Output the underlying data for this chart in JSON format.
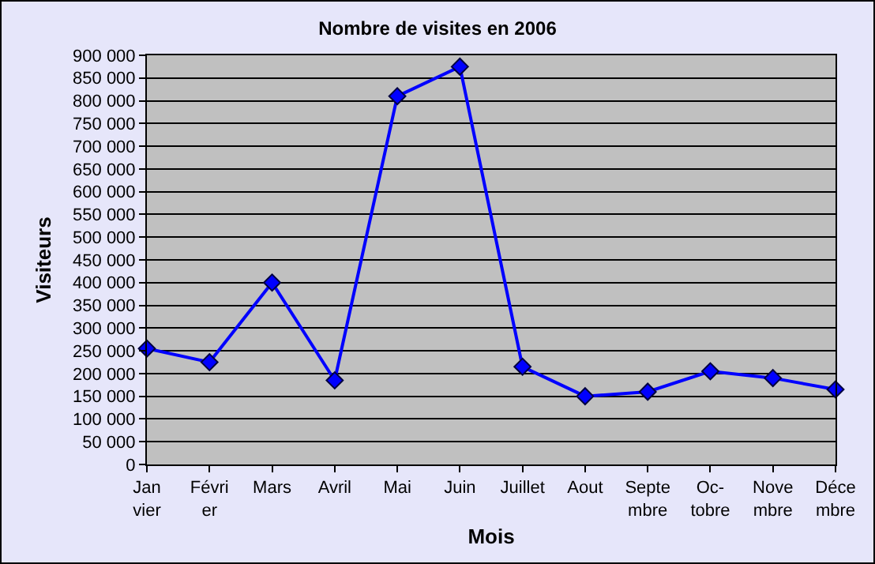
{
  "chart_data": {
    "type": "line",
    "title": "Nombre de visites en 2006",
    "xlabel": "Mois",
    "ylabel": "Visiteurs",
    "categories": [
      "Jan\nvier",
      "Févri\ner",
      "Mars",
      "Avril",
      "Mai",
      "Juin",
      "Juillet",
      "Aout",
      "Septe\nmbre",
      "Oc-\ntobre",
      "Nove\nmbre",
      "Déce\nmbre"
    ],
    "series": [
      {
        "color": "#0000ff",
        "values": [
          255000,
          225000,
          400000,
          185000,
          810000,
          875000,
          215000,
          150000,
          160000,
          205000,
          190000,
          165000
        ]
      }
    ],
    "ylim": [
      0,
      900000
    ],
    "yticks": [
      {
        "value": 0,
        "label": "0"
      },
      {
        "value": 50000,
        "label": "50 000"
      },
      {
        "value": 100000,
        "label": "100 000"
      },
      {
        "value": 150000,
        "label": "150 000"
      },
      {
        "value": 200000,
        "label": "200 000"
      },
      {
        "value": 250000,
        "label": "250 000"
      },
      {
        "value": 300000,
        "label": "300 000"
      },
      {
        "value": 350000,
        "label": "350 000"
      },
      {
        "value": 400000,
        "label": "400 000"
      },
      {
        "value": 450000,
        "label": "450 000"
      },
      {
        "value": 500000,
        "label": "500 000"
      },
      {
        "value": 550000,
        "label": "550 000"
      },
      {
        "value": 600000,
        "label": "600 000"
      },
      {
        "value": 650000,
        "label": "650 000"
      },
      {
        "value": 700000,
        "label": "700 000"
      },
      {
        "value": 750000,
        "label": "750 000"
      },
      {
        "value": 800000,
        "label": "800 000"
      },
      {
        "value": 850000,
        "label": "850 000"
      },
      {
        "value": 900000,
        "label": "900 000"
      }
    ],
    "grid": "y",
    "legend": false,
    "marker": "diamond",
    "line_style": "solid"
  }
}
